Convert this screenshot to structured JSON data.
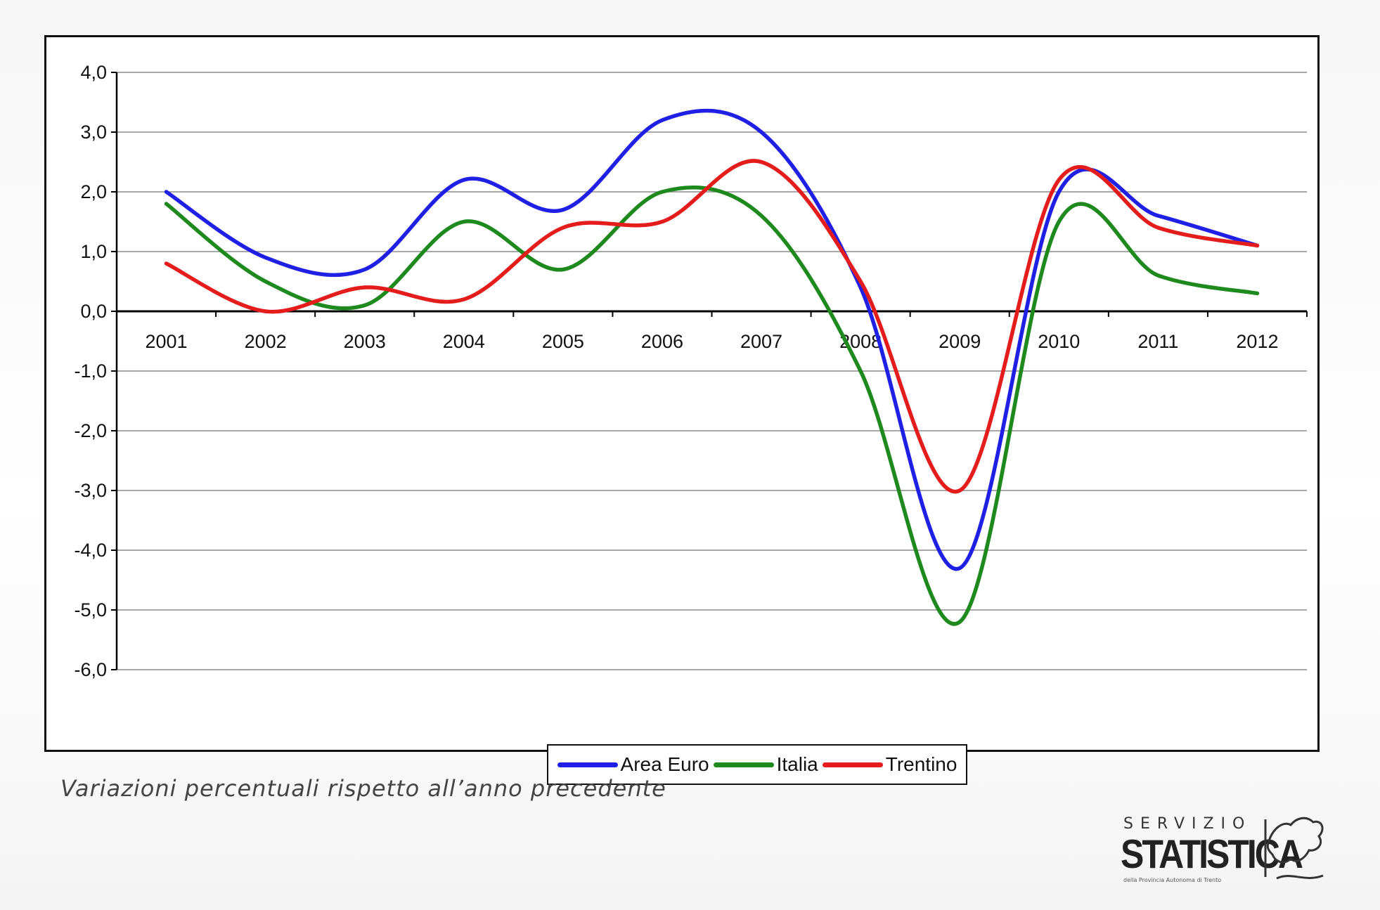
{
  "caption": "Variazioni percentuali rispetto all’anno precedente",
  "logo": {
    "top": "SERVIZIO",
    "main": "STATISTICA",
    "sub": "della Provincia Autonoma di Trento"
  },
  "chart_data": {
    "type": "line",
    "title": "",
    "xlabel": "",
    "ylabel": "",
    "categories": [
      "2001",
      "2002",
      "2003",
      "2004",
      "2005",
      "2006",
      "2007",
      "2008",
      "2009",
      "2010",
      "2011",
      "2012"
    ],
    "y_ticks": [
      "4,0",
      "3,0",
      "2,0",
      "1,0",
      "0,0",
      "-1,0",
      "-2,0",
      "-3,0",
      "-4,0",
      "-5,0",
      "-6,0"
    ],
    "ylim": [
      -6,
      4
    ],
    "grid": true,
    "legend": "bottom-center",
    "series": [
      {
        "name": "Area Euro",
        "color": "#1f1fe6",
        "values": [
          2.0,
          0.9,
          0.7,
          2.2,
          1.7,
          3.2,
          3.0,
          0.4,
          -4.3,
          2.0,
          1.6,
          1.1
        ]
      },
      {
        "name": "Italia",
        "color": "#1e8a1e",
        "values": [
          1.8,
          0.5,
          0.1,
          1.5,
          0.7,
          2.0,
          1.6,
          -1.0,
          -5.2,
          1.5,
          0.6,
          0.3
        ]
      },
      {
        "name": "Trentino",
        "color": "#e41c1c",
        "values": [
          0.8,
          0.0,
          0.4,
          0.2,
          1.4,
          1.5,
          2.5,
          0.5,
          -3.0,
          2.2,
          1.4,
          1.1
        ]
      }
    ]
  }
}
